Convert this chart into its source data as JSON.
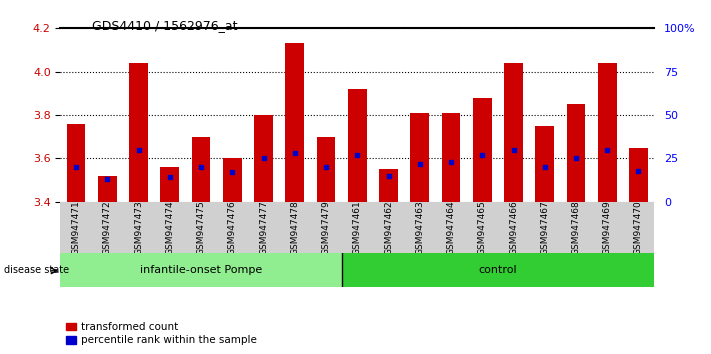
{
  "title": "GDS4410 / 1562976_at",
  "samples": [
    "GSM947471",
    "GSM947472",
    "GSM947473",
    "GSM947474",
    "GSM947475",
    "GSM947476",
    "GSM947477",
    "GSM947478",
    "GSM947479",
    "GSM947461",
    "GSM947462",
    "GSM947463",
    "GSM947464",
    "GSM947465",
    "GSM947466",
    "GSM947467",
    "GSM947468",
    "GSM947469",
    "GSM947470"
  ],
  "transformed_counts": [
    3.76,
    3.52,
    4.04,
    3.56,
    3.7,
    3.6,
    3.8,
    4.13,
    3.7,
    3.92,
    3.55,
    3.81,
    3.81,
    3.88,
    4.04,
    3.75,
    3.85,
    4.04,
    3.65
  ],
  "percentile_ranks": [
    20,
    13,
    30,
    14,
    20,
    17,
    25,
    28,
    20,
    27,
    15,
    22,
    23,
    27,
    30,
    20,
    25,
    30,
    18
  ],
  "bar_bottom": 3.4,
  "ylim": [
    3.4,
    4.2
  ],
  "y2lim": [
    0,
    100
  ],
  "y2ticks": [
    0,
    25,
    50,
    75,
    100
  ],
  "y2ticklabels": [
    "0",
    "25",
    "50",
    "75",
    "100%"
  ],
  "yticks": [
    3.4,
    3.6,
    3.8,
    4.0,
    4.2
  ],
  "bar_color": "#CC0000",
  "percentile_color": "#0000CC",
  "group1_label": "infantile-onset Pompe",
  "group2_label": "control",
  "group1_count": 9,
  "group2_count": 10,
  "group1_bg": "#90EE90",
  "group2_bg": "#32CD32",
  "disease_state_label": "disease state",
  "legend_transformed": "transformed count",
  "legend_percentile": "percentile rank within the sample",
  "bar_width": 0.6,
  "tick_bg": "#D0D0D0"
}
